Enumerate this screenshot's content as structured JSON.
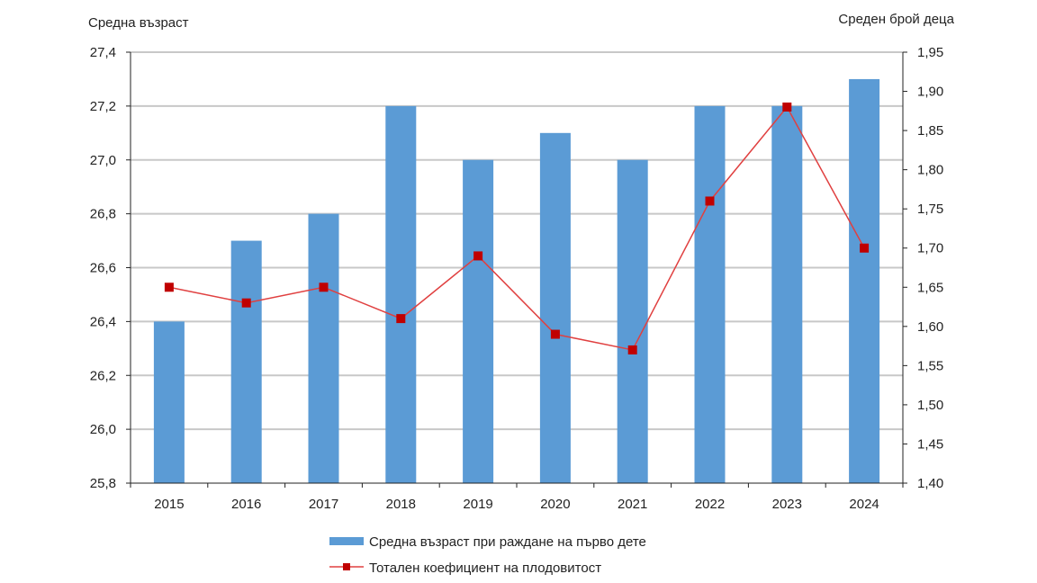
{
  "chart_data": {
    "type": "bar+line",
    "categories": [
      "2015",
      "2016",
      "2017",
      "2018",
      "2019",
      "2020",
      "2021",
      "2022",
      "2023",
      "2024"
    ],
    "left_axis": {
      "label": "Средна възраст",
      "ylim": [
        25.8,
        27.4
      ],
      "step": 0.2,
      "ticks": [
        "25,8",
        "26,0",
        "26,2",
        "26,4",
        "26,6",
        "26,8",
        "27,0",
        "27,2",
        "27,4"
      ]
    },
    "right_axis": {
      "label": "Среден брой деца",
      "ylim": [
        1.4,
        1.95
      ],
      "step": 0.05,
      "ticks": [
        "1,40",
        "1,45",
        "1,50",
        "1,55",
        "1,60",
        "1,65",
        "1,70",
        "1,75",
        "1,80",
        "1,85",
        "1,90",
        "1,95"
      ]
    },
    "grid": true,
    "legend_position": "bottom",
    "series": [
      {
        "name": "Средна възраст при раждане на първо дете",
        "type": "bar",
        "axis": "left",
        "color": "#5b9bd5",
        "values": [
          26.4,
          26.7,
          26.8,
          27.2,
          27.0,
          27.1,
          27.0,
          27.2,
          27.2,
          27.3
        ]
      },
      {
        "name": "Тотален коефициент на плодовитост",
        "type": "line",
        "axis": "right",
        "color": "#c00000",
        "line_color": "#e04040",
        "values": [
          1.65,
          1.63,
          1.65,
          1.61,
          1.69,
          1.59,
          1.57,
          1.76,
          1.88,
          1.7
        ]
      }
    ]
  }
}
